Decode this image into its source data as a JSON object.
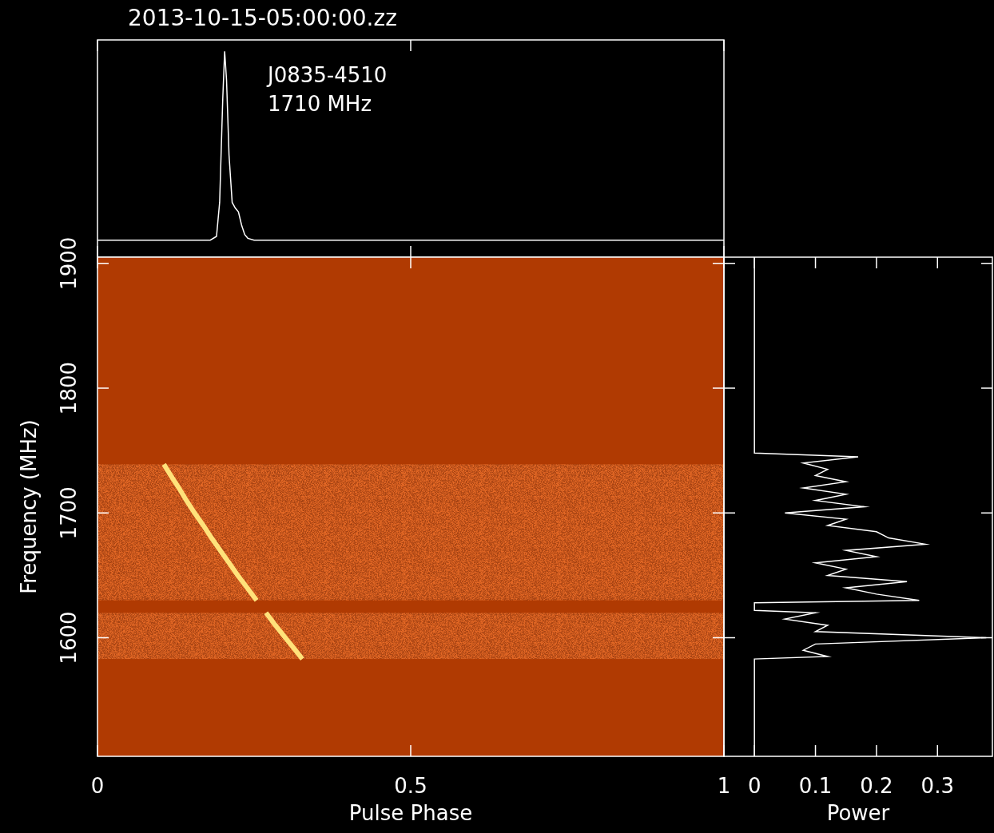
{
  "chart_data": [
    {
      "type": "line",
      "title": "2013-10-15-05:00:00.zz",
      "annotations": [
        "J0835-4510",
        "1710 MHz"
      ],
      "x": [
        0,
        0.1,
        0.18,
        0.19,
        0.195,
        0.2,
        0.203,
        0.206,
        0.21,
        0.215,
        0.22,
        0.225,
        0.23,
        0.235,
        0.24,
        0.25,
        0.3,
        0.5,
        0.7,
        1
      ],
      "values": [
        0,
        0,
        0,
        0.02,
        0.2,
        0.75,
        1,
        0.85,
        0.45,
        0.2,
        0.17,
        0.15,
        0.08,
        0.03,
        0.01,
        0,
        0,
        0,
        0,
        0
      ],
      "xlim": [
        0,
        1
      ],
      "xticks": [
        0,
        0.5,
        1
      ],
      "ylim": [
        -0.09,
        1.06
      ],
      "tick_labels": false,
      "color": "#ffffff",
      "grid": false
    },
    {
      "type": "line",
      "x_label": "Pulse Phase",
      "y_label": "Frequency (MHz)",
      "x": [
        0.106,
        0.117,
        0.13,
        0.142,
        0.155,
        0.169,
        0.182,
        0.196,
        0.21,
        0.224,
        0.239,
        0.254,
        0.261,
        0.269,
        0.284,
        0.3,
        0.316,
        0.327
      ],
      "values": [
        1739,
        1730,
        1720,
        1710,
        1700,
        1690,
        1680,
        1670,
        1660,
        1650,
        1640,
        1630,
        null,
        1620,
        1610,
        1600,
        1590,
        1583
      ],
      "observed_bands": [
        [
          1583,
          1620
        ],
        [
          1630,
          1739
        ]
      ],
      "xlim": [
        0,
        1
      ],
      "xticks": [
        0,
        0.5,
        1
      ],
      "ylim": [
        1505,
        1905
      ],
      "yticks": [
        1600,
        1700,
        1800,
        1900
      ],
      "color": "#ffe27a",
      "grid": false
    },
    {
      "type": "line",
      "x_label": "Power",
      "x": [
        0,
        0,
        0.12,
        0.08,
        0.1,
        0.38,
        0.1,
        0.12,
        0.05,
        0.1,
        0,
        0,
        0.27,
        0.2,
        0.15,
        0.25,
        0.12,
        0.15,
        0.1,
        0.2,
        0.15,
        0.28,
        0.22,
        0.2,
        0.12,
        0.15,
        0.05,
        0.18,
        0.1,
        0.15,
        0.08,
        0.15,
        0.1,
        0.12,
        0.08,
        0.17,
        0,
        0
      ],
      "values": [
        1505,
        1583,
        1585,
        1590,
        1595,
        1600,
        1605,
        1610,
        1615,
        1620,
        1622,
        1628,
        1630,
        1635,
        1640,
        1645,
        1650,
        1655,
        1660,
        1665,
        1670,
        1675,
        1680,
        1685,
        1690,
        1695,
        1700,
        1705,
        1710,
        1715,
        1720,
        1725,
        1730,
        1735,
        1740,
        1745,
        1748,
        1905
      ],
      "xlim": [
        -0.05,
        0.39
      ],
      "xticks": [
        0,
        0.1,
        0.2,
        0.3
      ],
      "ylim": [
        1505,
        1905
      ],
      "yticks": [
        1600,
        1700,
        1800,
        1900
      ],
      "tick_labels": "x",
      "color": "#ffffff",
      "grid": false
    }
  ]
}
